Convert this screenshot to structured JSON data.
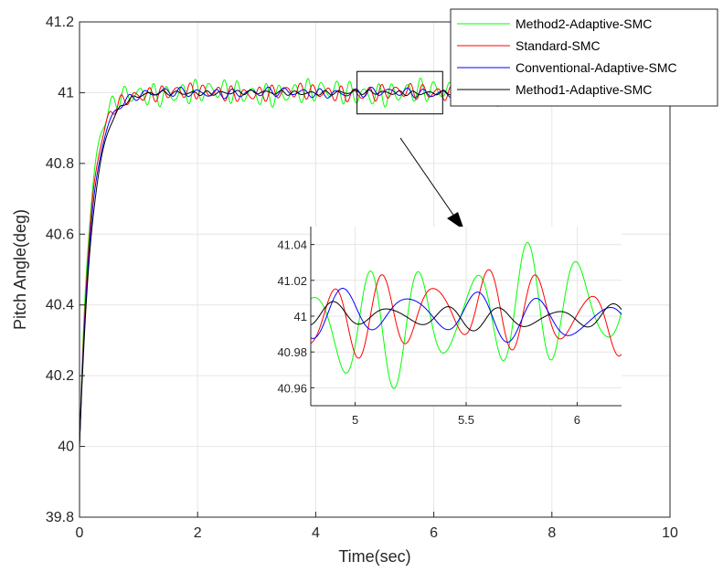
{
  "chart_data": {
    "type": "line",
    "xlabel": "Time(sec)",
    "ylabel": "Pitch Angle(deg)",
    "xlim": [
      0,
      10
    ],
    "ylim": [
      39.8,
      41.2
    ],
    "xticks": [
      "0",
      "2",
      "4",
      "6",
      "8",
      "10"
    ],
    "yticks": [
      "39.8",
      "40",
      "40.2",
      "40.4",
      "40.6",
      "40.8",
      "41",
      "41.2"
    ],
    "grid": true,
    "legend_position": "top-right",
    "series": [
      {
        "name": "Method2-Adaptive-SMC",
        "color": "#00ff00",
        "amplitude_deg": 0.03,
        "frequency_hz": 4.2,
        "rise_time_s": 0.55
      },
      {
        "name": "Standard-SMC",
        "color": "#ff0000",
        "amplitude_deg": 0.02,
        "frequency_hz": 4.3,
        "rise_time_s": 0.6
      },
      {
        "name": "Conventional-Adaptive-SMC",
        "color": "#0000ff",
        "amplitude_deg": 0.012,
        "frequency_hz": 3.4,
        "rise_time_s": 0.65
      },
      {
        "name": "Method1-Adaptive-SMC",
        "color": "#000000",
        "amplitude_deg": 0.006,
        "frequency_hz": 4.0,
        "rise_time_s": 0.7
      }
    ],
    "steady_state_deg": 41.0,
    "initial_deg": 40.0,
    "zoom_region": {
      "xlim": [
        4.7,
        6.15
      ],
      "ylim": [
        40.94,
        41.06
      ]
    },
    "inset": {
      "xlim": [
        4.8,
        6.2
      ],
      "ylim": [
        40.95,
        41.05
      ],
      "xticks": [
        "5",
        "5.5",
        "6"
      ],
      "yticks": [
        "40.96",
        "40.98",
        "41",
        "41.02",
        "41.04"
      ]
    }
  }
}
